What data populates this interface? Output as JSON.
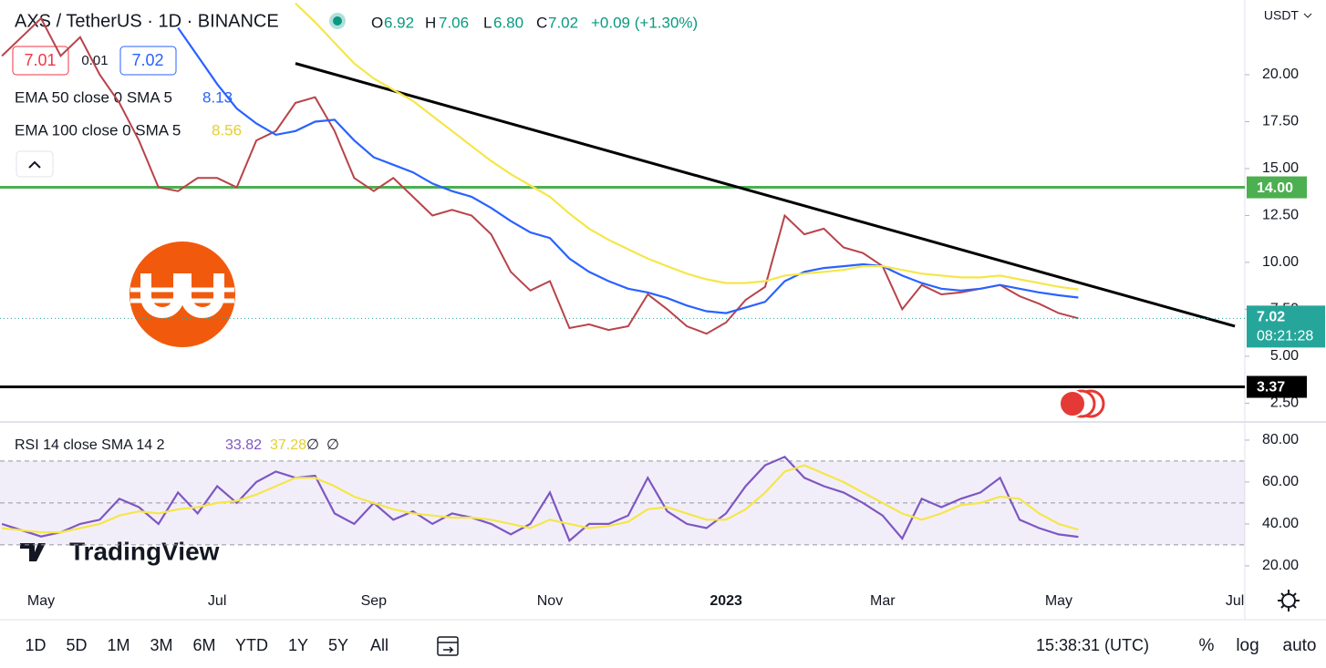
{
  "header": {
    "symbol": "AXS / TetherUS · 1D · BINANCE",
    "open_label": "O",
    "open": "6.92",
    "high_label": "H",
    "high": "7.06",
    "low_label": "L",
    "low": "6.80",
    "close_label": "C",
    "close": "7.02",
    "change": "+0.09 (+1.30%)",
    "bid": "7.01",
    "spread": "0.01",
    "ask": "7.02",
    "ema50_legend": "EMA 50 close 0 SMA 5",
    "ema50_value": "8.13",
    "ema100_legend": "EMA 100 close 0 SMA 5",
    "ema100_value": "8.56",
    "rsi_legend": "RSI 14 close SMA 14 2",
    "rsi_value": "33.82",
    "rsi_sma_value": "37.28",
    "rsi_extra1": "∅",
    "rsi_extra2": "∅",
    "currency": "USDT",
    "price_tag": "7.02",
    "countdown": "08:21:28",
    "watermark": "TradingView"
  },
  "toolbar": {
    "timeframes": [
      "1D",
      "5D",
      "1M",
      "3M",
      "6M",
      "YTD",
      "1Y",
      "5Y",
      "All"
    ],
    "clock": "15:38:31 (UTC)",
    "percent": "%",
    "log": "log",
    "auto": "auto"
  },
  "chart_data": [
    {
      "type": "line",
      "categories": [
        null,
        null,
        "May",
        null,
        null,
        null,
        null,
        null,
        null,
        null,
        null,
        "Jul",
        null,
        null,
        null,
        null,
        null,
        null,
        null,
        "Sep",
        null,
        null,
        null,
        null,
        null,
        null,
        null,
        null,
        "Nov",
        null,
        null,
        null,
        null,
        null,
        null,
        null,
        null,
        "2023",
        null,
        null,
        null,
        null,
        null,
        null,
        null,
        "Mar",
        null,
        null,
        null,
        null,
        null,
        null,
        null,
        null,
        "May",
        null,
        null,
        null,
        null,
        null,
        null,
        null,
        null,
        "Jul"
      ],
      "series": [
        {
          "name": "close",
          "color": "#b8434a",
          "values": [
            21,
            22,
            23,
            21,
            22,
            20,
            18.5,
            16.5,
            14,
            13.8,
            14.5,
            14.5,
            14,
            16.5,
            17,
            18.5,
            18.8,
            17,
            14.5,
            13.8,
            14.5,
            13.5,
            12.5,
            12.8,
            12.5,
            11.5,
            9.5,
            8.5,
            9,
            6.5,
            6.7,
            6.4,
            6.6,
            8.3,
            7.5,
            6.6,
            6.2,
            6.8,
            8,
            8.7,
            12.5,
            11.5,
            11.8,
            10.8,
            10.5,
            9.8,
            7.5,
            8.8,
            8.3,
            8.4,
            8.6,
            8.8,
            8.2,
            7.8,
            7.3,
            7.02,
            null,
            null,
            null,
            null,
            null,
            null,
            null,
            null
          ]
        },
        {
          "name": "EMA 50",
          "color": "#2962ff",
          "values": [
            null,
            null,
            null,
            null,
            null,
            null,
            null,
            null,
            null,
            22.5,
            21,
            19.5,
            18.2,
            17.4,
            16.8,
            17,
            17.5,
            17.6,
            16.5,
            15.6,
            15.2,
            14.8,
            14.2,
            13.8,
            13.5,
            12.9,
            12.2,
            11.6,
            11.3,
            10.2,
            9.5,
            9,
            8.6,
            8.4,
            8.1,
            7.7,
            7.4,
            7.3,
            7.6,
            7.9,
            9,
            9.5,
            9.7,
            9.8,
            9.9,
            9.8,
            9.3,
            8.9,
            8.6,
            8.5,
            8.6,
            8.8,
            8.6,
            8.4,
            8.25,
            8.13,
            null,
            null,
            null,
            null,
            null,
            null,
            null,
            null
          ]
        },
        {
          "name": "EMA 100",
          "color": "#f5e64a",
          "values": [
            null,
            null,
            null,
            null,
            null,
            null,
            null,
            null,
            null,
            null,
            null,
            null,
            null,
            null,
            null,
            23.8,
            22.8,
            21.7,
            20.6,
            19.8,
            19.2,
            18.6,
            17.8,
            17,
            16.2,
            15.4,
            14.7,
            14.1,
            13.5,
            12.6,
            11.8,
            11.2,
            10.7,
            10.2,
            9.8,
            9.4,
            9.1,
            8.9,
            8.9,
            9,
            9.3,
            9.4,
            9.5,
            9.6,
            9.8,
            9.8,
            9.6,
            9.4,
            9.3,
            9.2,
            9.2,
            9.3,
            9.1,
            8.9,
            8.7,
            8.56,
            null,
            null,
            null,
            null,
            null,
            null,
            null,
            null
          ]
        }
      ],
      "hlines": [
        {
          "value": 14,
          "label": "14.00",
          "color": "#4caf50"
        },
        {
          "value": 3.37,
          "label": "3.37",
          "color": "#000000"
        }
      ],
      "trendline": {
        "start_index": 15,
        "start": 20.6,
        "end_index": 63,
        "end": 6.6,
        "color": "#000000"
      },
      "ylim": [
        1.55,
        23.98
      ],
      "yticks": [
        {
          "value": 2.5,
          "label": "2.50"
        },
        {
          "value": 5,
          "label": "5.00"
        },
        {
          "value": 7.5,
          "label": "7.50"
        },
        {
          "value": 10,
          "label": "10.00"
        },
        {
          "value": 12.5,
          "label": "12.50"
        },
        {
          "value": 15,
          "label": "15.00"
        },
        {
          "value": 17.5,
          "label": "17.50"
        },
        {
          "value": 20,
          "label": "20.00"
        }
      ]
    },
    {
      "type": "line",
      "series": [
        {
          "name": "RSI",
          "color": "#7e57c2",
          "values": [
            40,
            37,
            34,
            36,
            40,
            42,
            52,
            48,
            40,
            55,
            45,
            58,
            50,
            60,
            65,
            62,
            63,
            45,
            40,
            50,
            42,
            46,
            40,
            45,
            43,
            40,
            35,
            40,
            55,
            32,
            40,
            40,
            44,
            62,
            46,
            40,
            38,
            45,
            58,
            68,
            72,
            62,
            58,
            55,
            50,
            44,
            33,
            52,
            48,
            52,
            55,
            62,
            42,
            38,
            35,
            33.82,
            null,
            null,
            null,
            null,
            null,
            null,
            null,
            null
          ]
        },
        {
          "name": "SMA",
          "color": "#f5e64a",
          "values": [
            38,
            37,
            36,
            36,
            38,
            40,
            44,
            46,
            45,
            47,
            48,
            50,
            51,
            54,
            58,
            62,
            62,
            58,
            53,
            50,
            47,
            45,
            44,
            43,
            43,
            42,
            40,
            38,
            42,
            40,
            38,
            39,
            41,
            47,
            48,
            45,
            42,
            42,
            47,
            55,
            65,
            68,
            64,
            60,
            55,
            50,
            45,
            42,
            45,
            49,
            50,
            53,
            52,
            45,
            40,
            37.28,
            null,
            null,
            null,
            null,
            null,
            null,
            null,
            null
          ]
        }
      ],
      "levels": [
        70,
        50,
        30
      ],
      "ylim": [
        11.7,
        87.8
      ],
      "yticks": [
        {
          "value": 20,
          "label": "20.00"
        },
        {
          "value": 40,
          "label": "40.00"
        },
        {
          "value": 60,
          "label": "60.00"
        },
        {
          "value": 80,
          "label": "80.00"
        }
      ]
    }
  ]
}
